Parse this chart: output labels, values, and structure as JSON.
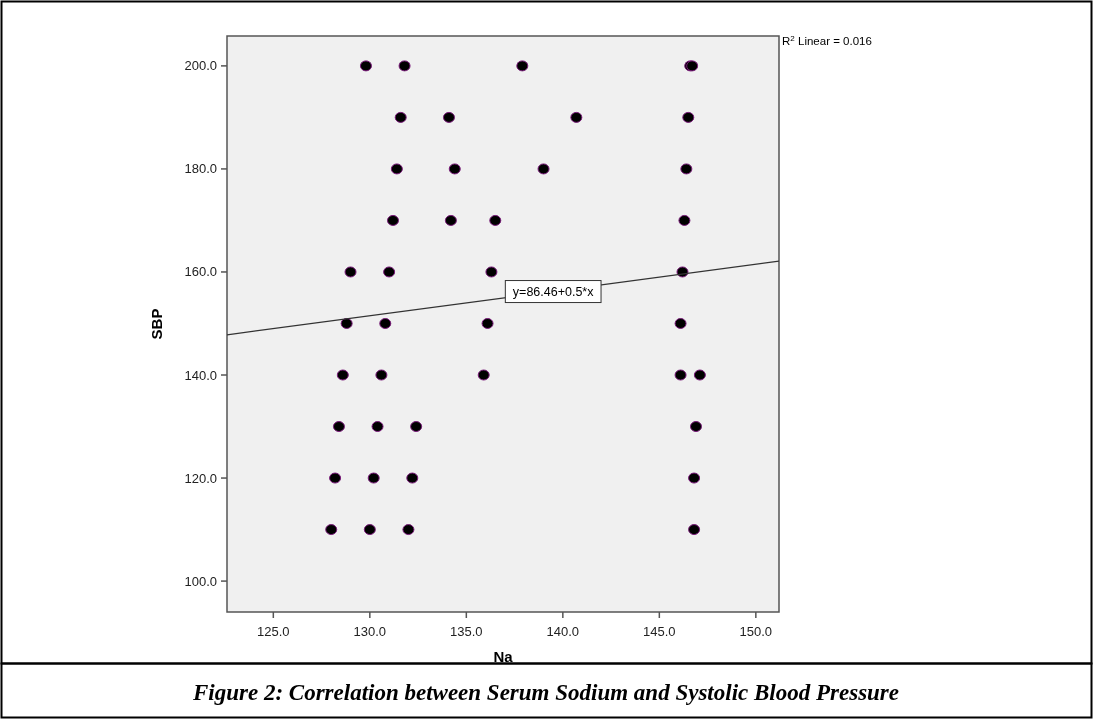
{
  "chart_data": {
    "type": "scatter",
    "xlabel": "Na",
    "ylabel": "SBP",
    "xlim": [
      122.6,
      151.2
    ],
    "ylim": [
      94,
      205.8
    ],
    "xticks": [
      {
        "value": 125,
        "label": "125.0"
      },
      {
        "value": 130,
        "label": "130.0"
      },
      {
        "value": 135,
        "label": "135.0"
      },
      {
        "value": 140,
        "label": "140.0"
      },
      {
        "value": 145,
        "label": "145.0"
      },
      {
        "value": 150,
        "label": "150.0"
      }
    ],
    "yticks": [
      {
        "value": 100,
        "label": "100.0"
      },
      {
        "value": 120,
        "label": "120.0"
      },
      {
        "value": 140,
        "label": "140.0"
      },
      {
        "value": 160,
        "label": "160.0"
      },
      {
        "value": 180,
        "label": "180.0"
      },
      {
        "value": 200,
        "label": "200.0"
      }
    ],
    "grid": false,
    "series": [
      {
        "marker": "circle",
        "color": "#000000",
        "x": [
          129.8,
          131.8,
          137.9,
          146.6,
          146.7,
          131.6,
          134.1,
          140.7,
          146.5,
          131.4,
          134.4,
          139.0,
          146.4,
          131.2,
          134.2,
          136.5,
          146.3,
          129.0,
          131.0,
          136.3,
          146.2,
          128.8,
          130.8,
          136.1,
          146.1,
          128.6,
          130.6,
          135.9,
          146.1,
          147.1,
          128.4,
          130.4,
          132.4,
          146.9,
          128.2,
          130.2,
          132.2,
          146.8,
          128.0,
          130.0,
          132.0,
          146.8
        ],
        "values": [
          200,
          200,
          200,
          200,
          200,
          190,
          190,
          190,
          190,
          180,
          180,
          180,
          180,
          170,
          170,
          170,
          170,
          160,
          160,
          160,
          160,
          150,
          150,
          150,
          150,
          140,
          140,
          140,
          140,
          140,
          130,
          130,
          130,
          130,
          120,
          120,
          120,
          120,
          110,
          110,
          110,
          110
        ]
      },
      {
        "type": "line",
        "marker": "none",
        "color": "#333333",
        "x": [
          122.6,
          151.2
        ],
        "values": [
          147.8,
          162.1
        ]
      }
    ],
    "annotations": [
      {
        "text": "y=86.46+0.5*x",
        "x": 139.5,
        "y": 156.2
      },
      "R$^{2}$ Linear = 0.016",
      "Figure 2: Correlation between Serum Sodium and Systolic Blood Pressure"
    ]
  }
}
